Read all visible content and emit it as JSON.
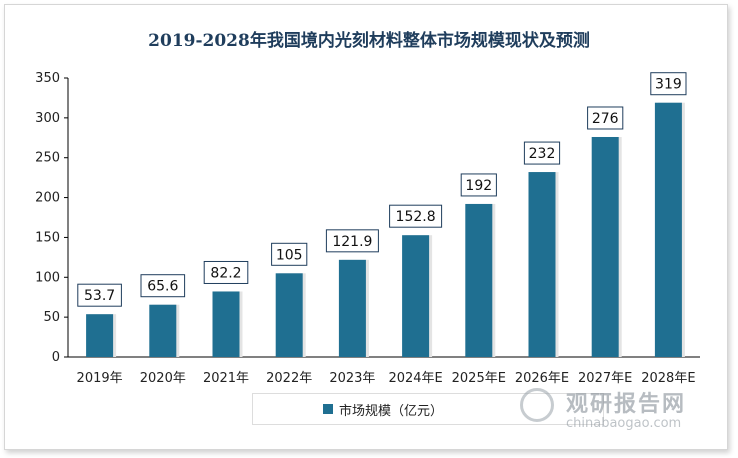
{
  "chart_data": {
    "type": "bar",
    "title": "2019-2028年我国境内光刻材料整体市场规模现状及预测",
    "categories": [
      "2019年",
      "2020年",
      "2021年",
      "2022年",
      "2023年",
      "2024年E",
      "2025年E",
      "2026年E",
      "2027年E",
      "2028年E"
    ],
    "series": [
      {
        "name": "市场规模（亿元）",
        "values": [
          53.7,
          65.6,
          82.2,
          105,
          121.9,
          152.8,
          192,
          232,
          276,
          319
        ]
      }
    ],
    "data_labels": [
      "53.7",
      "65.6",
      "82.2",
      "105",
      "121.9",
      "152.8",
      "192",
      "232",
      "276",
      "319"
    ],
    "ylim": [
      0,
      350
    ],
    "yticks": [
      0,
      50,
      100,
      150,
      200,
      250,
      300,
      350
    ],
    "xlabel": "",
    "ylabel": "",
    "grid": false,
    "legend": "bottom",
    "colors": {
      "bar": "#1f6f91",
      "title": "#1f3d5c",
      "label_border": "#1f3d5c"
    }
  },
  "watermark": {
    "cn": "观研报告网",
    "en": "chinabaogao.com",
    "logo": "chinabaogao-logo-icon"
  }
}
